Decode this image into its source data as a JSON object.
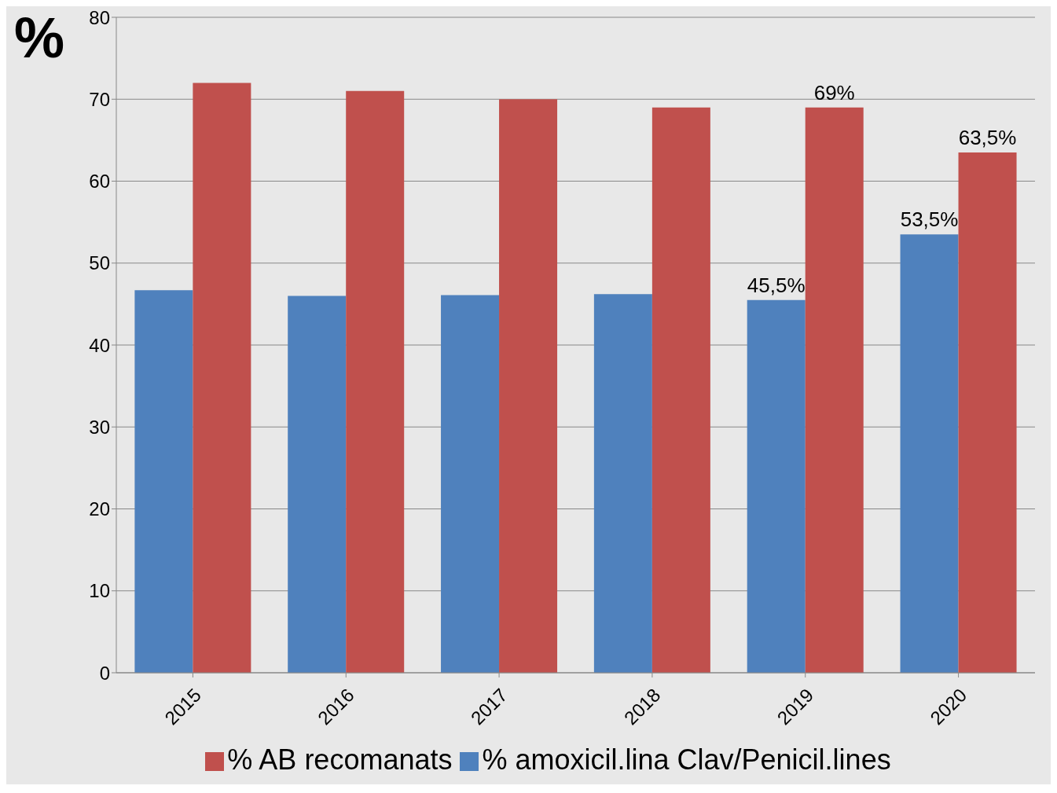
{
  "chart_data": {
    "type": "bar",
    "ylabel": "%",
    "categories": [
      "2015",
      "2016",
      "2017",
      "2018",
      "2019",
      "2020"
    ],
    "series": [
      {
        "name": "% amoxicil.lina Clav/Penicil.lines",
        "color": "#4f81bd",
        "values": [
          46.7,
          46.0,
          46.1,
          46.2,
          45.5,
          53.5
        ],
        "value_labels": [
          null,
          null,
          null,
          null,
          "45,5%",
          "53,5%"
        ]
      },
      {
        "name": "% AB recomanats",
        "color": "#c0504d",
        "values": [
          72,
          71,
          70,
          69,
          69,
          63.5
        ],
        "value_labels": [
          null,
          null,
          null,
          null,
          "69%",
          "63,5%"
        ]
      }
    ],
    "ylim": [
      0,
      80
    ],
    "yticks": [
      0,
      10,
      20,
      30,
      40,
      50,
      60,
      70,
      80
    ],
    "grid": "y",
    "legend": "bottom"
  }
}
